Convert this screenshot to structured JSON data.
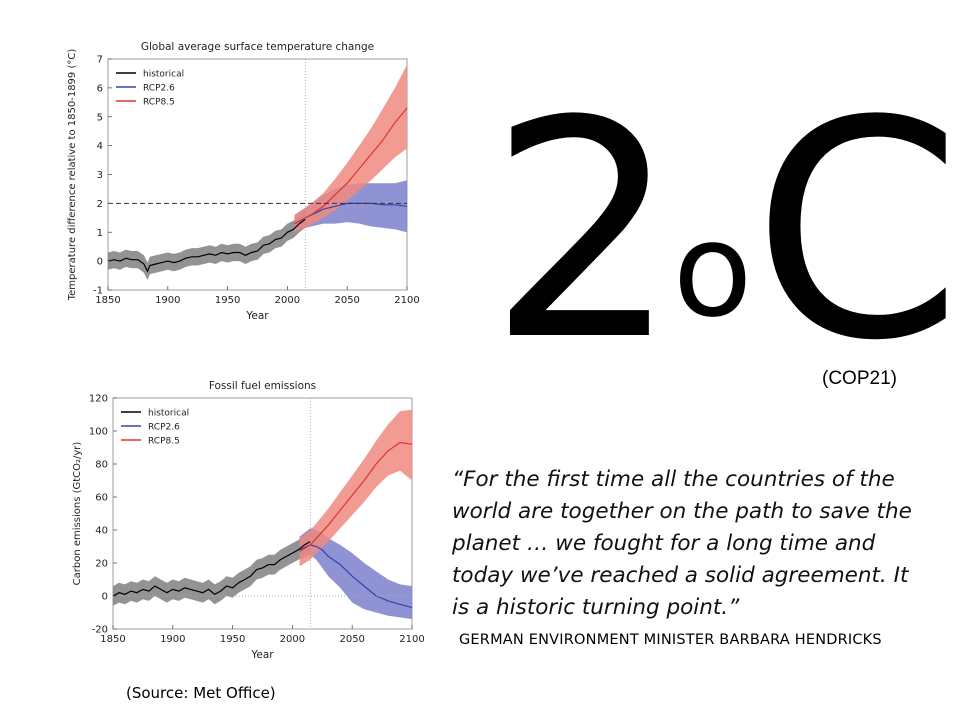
{
  "headline": {
    "number": "2",
    "degree": "o",
    "unit": "C",
    "note": "(COP21)"
  },
  "quote": "“For the first time all the countries of the world are together on the path to save the planet … we fought for a long time and today we’ve reached a solid agreement. It is a historic turning point.”",
  "attribution": "GERMAN ENVIRONMENT MINISTER BARBARA HENDRICKS",
  "source": "(Source:  Met Office)",
  "chart_data": [
    {
      "type": "line",
      "title": "Global average surface temperature change",
      "xlabel": "Year",
      "ylabel": "Temperature difference relative to 1850-1899 (°C)",
      "xlim": [
        1850,
        2100
      ],
      "ylim": [
        -1,
        7
      ],
      "xticks": [
        1850,
        1900,
        1950,
        2000,
        2050,
        2100
      ],
      "yticks": [
        -1,
        0,
        1,
        2,
        3,
        4,
        5,
        6,
        7
      ],
      "reference_line": {
        "y": 2,
        "style": "dashed"
      },
      "vertical_marker": {
        "x": 2015,
        "style": "dotted"
      },
      "legend": {
        "placement": "top-left",
        "entries": [
          "historical",
          "RCP2.6",
          "RCP8.5"
        ]
      },
      "series": [
        {
          "name": "historical",
          "color": "#000000",
          "band_color": "#808080",
          "x": [
            1850,
            1855,
            1860,
            1865,
            1870,
            1875,
            1880,
            1883,
            1885,
            1890,
            1895,
            1900,
            1905,
            1910,
            1915,
            1920,
            1925,
            1930,
            1935,
            1940,
            1945,
            1950,
            1955,
            1960,
            1965,
            1970,
            1975,
            1980,
            1985,
            1990,
            1995,
            2000,
            2005,
            2010,
            2015
          ],
          "y": [
            0.0,
            0.05,
            0.0,
            0.1,
            0.05,
            0.05,
            -0.1,
            -0.35,
            -0.15,
            -0.1,
            -0.05,
            0.0,
            -0.05,
            0.0,
            0.1,
            0.15,
            0.15,
            0.2,
            0.25,
            0.2,
            0.3,
            0.25,
            0.3,
            0.3,
            0.2,
            0.3,
            0.35,
            0.55,
            0.6,
            0.75,
            0.8,
            1.0,
            1.1,
            1.3,
            1.45
          ],
          "lower": [
            -0.3,
            -0.25,
            -0.3,
            -0.2,
            -0.25,
            -0.25,
            -0.4,
            -0.65,
            -0.45,
            -0.4,
            -0.35,
            -0.3,
            -0.35,
            -0.3,
            -0.2,
            -0.15,
            -0.15,
            -0.1,
            -0.05,
            -0.1,
            0.0,
            -0.05,
            0.0,
            0.0,
            -0.1,
            0.0,
            0.05,
            0.25,
            0.3,
            0.45,
            0.5,
            0.7,
            0.8,
            1.0,
            1.15
          ],
          "upper": [
            0.3,
            0.35,
            0.3,
            0.4,
            0.35,
            0.35,
            0.2,
            -0.05,
            0.15,
            0.2,
            0.25,
            0.3,
            0.25,
            0.3,
            0.4,
            0.45,
            0.45,
            0.5,
            0.55,
            0.5,
            0.6,
            0.55,
            0.6,
            0.6,
            0.5,
            0.6,
            0.65,
            0.85,
            0.9,
            1.05,
            1.1,
            1.3,
            1.4,
            1.6,
            1.75
          ]
        },
        {
          "name": "RCP2.6",
          "color": "#3344aa",
          "band_color": "#7b80cc",
          "x": [
            2006,
            2015,
            2020,
            2030,
            2040,
            2050,
            2060,
            2070,
            2080,
            2090,
            2100
          ],
          "y": [
            1.3,
            1.5,
            1.6,
            1.8,
            1.9,
            2.0,
            2.0,
            2.0,
            1.95,
            1.95,
            1.9
          ],
          "lower": [
            1.0,
            1.15,
            1.2,
            1.3,
            1.3,
            1.35,
            1.3,
            1.2,
            1.15,
            1.1,
            1.0
          ],
          "upper": [
            1.6,
            1.85,
            2.0,
            2.3,
            2.5,
            2.65,
            2.7,
            2.7,
            2.7,
            2.7,
            2.8
          ]
        },
        {
          "name": "RCP8.5",
          "color": "#dd3333",
          "band_color": "#f08a80",
          "x": [
            2006,
            2015,
            2020,
            2030,
            2040,
            2050,
            2060,
            2070,
            2080,
            2090,
            2100
          ],
          "y": [
            1.3,
            1.5,
            1.6,
            1.9,
            2.3,
            2.7,
            3.2,
            3.7,
            4.2,
            4.8,
            5.3
          ],
          "lower": [
            1.0,
            1.15,
            1.25,
            1.5,
            1.75,
            2.1,
            2.45,
            2.8,
            3.2,
            3.6,
            3.9
          ],
          "upper": [
            1.6,
            1.85,
            2.0,
            2.35,
            2.85,
            3.4,
            4.0,
            4.6,
            5.3,
            6.0,
            6.8
          ]
        }
      ]
    },
    {
      "type": "line",
      "title": "Fossil fuel emissions",
      "xlabel": "Year",
      "ylabel": "Carbon emissions (GtCO₂/yr)",
      "xlim": [
        1850,
        2100
      ],
      "ylim": [
        -20,
        120
      ],
      "xticks": [
        1850,
        1900,
        1950,
        2000,
        2050,
        2100
      ],
      "yticks": [
        -20,
        0,
        20,
        40,
        60,
        80,
        100,
        120
      ],
      "reference_line": {
        "y": 0,
        "style": "dotted"
      },
      "vertical_marker": {
        "x": 2015,
        "style": "dotted"
      },
      "legend": {
        "placement": "top-left",
        "entries": [
          "historical",
          "RCP2.6",
          "RCP8.5"
        ]
      },
      "series": [
        {
          "name": "historical",
          "color": "#000000",
          "band_color": "#808080",
          "x": [
            1850,
            1855,
            1860,
            1865,
            1870,
            1875,
            1880,
            1885,
            1890,
            1895,
            1900,
            1905,
            1910,
            1915,
            1920,
            1925,
            1930,
            1935,
            1940,
            1945,
            1950,
            1955,
            1960,
            1965,
            1970,
            1975,
            1980,
            1985,
            1990,
            1995,
            2000,
            2005,
            2010,
            2015
          ],
          "y": [
            0,
            2,
            1,
            3,
            2,
            4,
            3,
            6,
            4,
            2,
            4,
            3,
            5,
            4,
            3,
            2,
            4,
            1,
            3,
            6,
            5,
            8,
            10,
            12,
            16,
            17,
            19,
            19,
            22,
            24,
            26,
            28,
            31,
            33
          ],
          "lower": [
            -6,
            -4,
            -5,
            -3,
            -4,
            -2,
            -3,
            0,
            -2,
            -4,
            -2,
            -3,
            -1,
            -2,
            -3,
            -4,
            -2,
            -5,
            -3,
            0,
            -1,
            2,
            4,
            6,
            10,
            11,
            13,
            13,
            16,
            18,
            20,
            22,
            25,
            27
          ],
          "upper": [
            6,
            8,
            7,
            9,
            8,
            10,
            9,
            12,
            10,
            8,
            10,
            9,
            11,
            10,
            9,
            8,
            10,
            7,
            9,
            12,
            11,
            14,
            16,
            18,
            22,
            23,
            25,
            25,
            28,
            30,
            32,
            34,
            37,
            39
          ]
        },
        {
          "name": "RCP2.6",
          "color": "#3344aa",
          "band_color": "#7b80cc",
          "x": [
            2006,
            2015,
            2020,
            2025,
            2030,
            2040,
            2050,
            2060,
            2070,
            2080,
            2090,
            2100
          ],
          "y": [
            28,
            31,
            30,
            28,
            24,
            19,
            12,
            6,
            0,
            -3,
            -5,
            -7
          ],
          "lower": [
            22,
            25,
            22,
            17,
            12,
            5,
            -4,
            -8,
            -10,
            -12,
            -13,
            -14
          ],
          "upper": [
            36,
            41,
            40,
            38,
            35,
            31,
            26,
            20,
            15,
            10,
            7,
            6
          ]
        },
        {
          "name": "RCP8.5",
          "color": "#dd3333",
          "band_color": "#f08a80",
          "x": [
            2006,
            2015,
            2020,
            2030,
            2040,
            2050,
            2060,
            2070,
            2080,
            2090,
            2100
          ],
          "y": [
            27,
            31,
            35,
            43,
            52,
            61,
            70,
            80,
            88,
            93,
            92
          ],
          "lower": [
            18,
            22,
            26,
            33,
            41,
            49,
            57,
            66,
            73,
            76,
            70
          ],
          "upper": [
            35,
            40,
            44,
            53,
            63,
            73,
            83,
            94,
            104,
            112,
            113
          ]
        }
      ]
    }
  ]
}
